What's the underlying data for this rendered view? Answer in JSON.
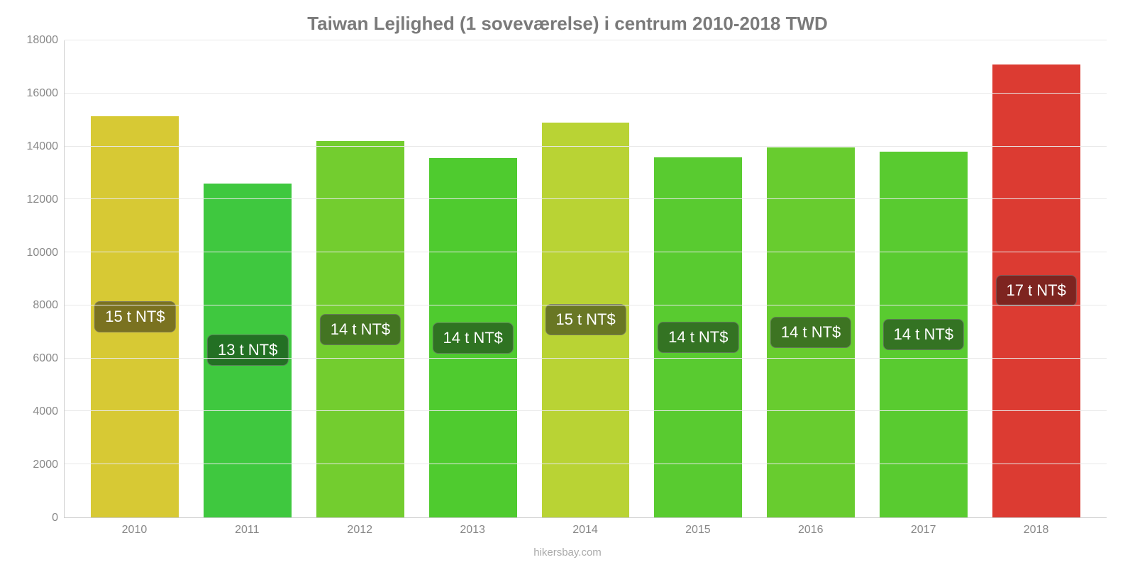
{
  "chart": {
    "type": "bar",
    "title": "Taiwan Lejlighed (1 soveværelse) i centrum 2010-2018 TWD",
    "title_fontsize": 26,
    "title_color": "#7a7a7a",
    "background_color": "#ffffff",
    "grid_color": "#e8e8e8",
    "axis_color": "#cccccc",
    "tick_label_color": "#888888",
    "tick_label_fontsize": 16,
    "ylim": [
      0,
      18000
    ],
    "ytick_step": 2000,
    "yticks": [
      "0",
      "2000",
      "4000",
      "6000",
      "8000",
      "10000",
      "12000",
      "14000",
      "16000",
      "18000"
    ],
    "categories": [
      "2010",
      "2011",
      "2012",
      "2013",
      "2014",
      "2015",
      "2016",
      "2017",
      "2018"
    ],
    "values": [
      15150,
      12600,
      14200,
      13550,
      14900,
      13600,
      13950,
      13800,
      17100
    ],
    "bar_colors": [
      "#d7c934",
      "#3fc83f",
      "#73cd2f",
      "#4fcb2f",
      "#b9d334",
      "#59cb30",
      "#68cc2f",
      "#59cb30",
      "#dc3b32"
    ],
    "bar_labels": [
      "15 t NT$",
      "13 t NT$",
      "14 t NT$",
      "14 t NT$",
      "15 t NT$",
      "14 t NT$",
      "14 t NT$",
      "14 t NT$",
      "17 t NT$"
    ],
    "bar_label_bg_colors": [
      "#7a7220",
      "#237024",
      "#437422",
      "#2f7322",
      "#697724",
      "#347323",
      "#3d7422",
      "#347323",
      "#7e2420"
    ],
    "bar_label_text_color": "#ffffff",
    "bar_label_fontsize": 22,
    "bar_width_pct": 78,
    "source_text": "hikersbay.com",
    "source_color": "#aaaaaa",
    "source_fontsize": 15
  }
}
